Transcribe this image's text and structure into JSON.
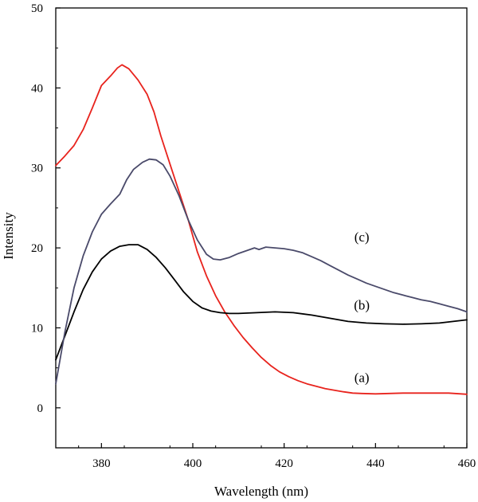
{
  "chart_data": {
    "type": "line",
    "xlabel": "Wavelength (nm)",
    "ylabel": "Intensity",
    "xlim": [
      370,
      460
    ],
    "ylim": [
      -5,
      50
    ],
    "grid": false,
    "legend": "none",
    "xticks": [
      380,
      400,
      420,
      440,
      460
    ],
    "yticks": [
      0,
      10,
      20,
      30,
      40,
      50
    ],
    "series": [
      {
        "label": "(a)",
        "color": "#e8231d",
        "label_at": [
          437,
          3.2
        ],
        "points": [
          [
            370,
            30.3
          ],
          [
            372,
            31.5
          ],
          [
            374,
            32.8
          ],
          [
            376,
            34.8
          ],
          [
            378,
            37.5
          ],
          [
            380,
            40.3
          ],
          [
            382,
            41.5
          ],
          [
            383.5,
            42.5
          ],
          [
            384.5,
            42.9
          ],
          [
            386,
            42.4
          ],
          [
            388,
            41.0
          ],
          [
            390,
            39.2
          ],
          [
            391.5,
            37.0
          ],
          [
            393,
            34.0
          ],
          [
            395,
            30.5
          ],
          [
            397,
            27.0
          ],
          [
            399,
            23.5
          ],
          [
            401,
            19.5
          ],
          [
            403,
            16.5
          ],
          [
            405,
            14.0
          ],
          [
            407,
            12.0
          ],
          [
            409,
            10.3
          ],
          [
            411,
            8.8
          ],
          [
            413,
            7.5
          ],
          [
            415,
            6.3
          ],
          [
            417,
            5.3
          ],
          [
            419,
            4.5
          ],
          [
            421,
            3.9
          ],
          [
            423,
            3.4
          ],
          [
            425,
            3.0
          ],
          [
            427,
            2.7
          ],
          [
            429,
            2.4
          ],
          [
            431,
            2.2
          ],
          [
            433,
            2.0
          ],
          [
            435,
            1.85
          ],
          [
            437,
            1.8
          ],
          [
            440,
            1.75
          ],
          [
            443,
            1.8
          ],
          [
            446,
            1.85
          ],
          [
            450,
            1.85
          ],
          [
            453,
            1.85
          ],
          [
            456,
            1.85
          ],
          [
            460,
            1.7
          ]
        ]
      },
      {
        "label": "(b)",
        "color": "#000000",
        "label_at": [
          437,
          12.3
        ],
        "points": [
          [
            370,
            6.0
          ],
          [
            372,
            9.0
          ],
          [
            374,
            12.0
          ],
          [
            376,
            14.8
          ],
          [
            378,
            17.0
          ],
          [
            380,
            18.6
          ],
          [
            382,
            19.6
          ],
          [
            384,
            20.2
          ],
          [
            386,
            20.4
          ],
          [
            388,
            20.4
          ],
          [
            390,
            19.8
          ],
          [
            392,
            18.8
          ],
          [
            394,
            17.5
          ],
          [
            396,
            16.0
          ],
          [
            398,
            14.5
          ],
          [
            400,
            13.3
          ],
          [
            402,
            12.5
          ],
          [
            404,
            12.1
          ],
          [
            406,
            11.9
          ],
          [
            408,
            11.8
          ],
          [
            410,
            11.8
          ],
          [
            412,
            11.85
          ],
          [
            414,
            11.9
          ],
          [
            418,
            12.0
          ],
          [
            422,
            11.9
          ],
          [
            426,
            11.6
          ],
          [
            430,
            11.2
          ],
          [
            434,
            10.8
          ],
          [
            438,
            10.6
          ],
          [
            442,
            10.5
          ],
          [
            446,
            10.45
          ],
          [
            450,
            10.5
          ],
          [
            454,
            10.6
          ],
          [
            457,
            10.8
          ],
          [
            460,
            11.0
          ]
        ]
      },
      {
        "label": "(c)",
        "color": "#4a4a6a",
        "label_at": [
          437,
          20.8
        ],
        "points": [
          [
            370,
            3.0
          ],
          [
            372,
            9.5
          ],
          [
            374,
            15.0
          ],
          [
            376,
            19.0
          ],
          [
            378,
            22.0
          ],
          [
            380,
            24.2
          ],
          [
            382,
            25.5
          ],
          [
            384,
            26.7
          ],
          [
            385.5,
            28.5
          ],
          [
            387,
            29.8
          ],
          [
            389,
            30.7
          ],
          [
            390.5,
            31.1
          ],
          [
            392,
            31.0
          ],
          [
            393.5,
            30.4
          ],
          [
            395,
            29.0
          ],
          [
            397,
            26.5
          ],
          [
            399,
            23.5
          ],
          [
            401,
            21.0
          ],
          [
            403,
            19.2
          ],
          [
            404.5,
            18.6
          ],
          [
            406,
            18.5
          ],
          [
            408,
            18.8
          ],
          [
            410,
            19.3
          ],
          [
            412,
            19.7
          ],
          [
            413.5,
            20.0
          ],
          [
            414.5,
            19.8
          ],
          [
            416,
            20.1
          ],
          [
            418,
            20.0
          ],
          [
            420,
            19.9
          ],
          [
            422,
            19.7
          ],
          [
            424,
            19.4
          ],
          [
            426,
            18.9
          ],
          [
            428,
            18.4
          ],
          [
            430,
            17.8
          ],
          [
            432,
            17.2
          ],
          [
            434,
            16.6
          ],
          [
            436,
            16.1
          ],
          [
            438,
            15.6
          ],
          [
            440,
            15.2
          ],
          [
            442,
            14.8
          ],
          [
            444,
            14.4
          ],
          [
            446,
            14.1
          ],
          [
            448,
            13.8
          ],
          [
            450,
            13.5
          ],
          [
            452,
            13.3
          ],
          [
            454,
            13.0
          ],
          [
            456,
            12.7
          ],
          [
            458,
            12.4
          ],
          [
            460,
            12.0
          ]
        ]
      }
    ]
  }
}
